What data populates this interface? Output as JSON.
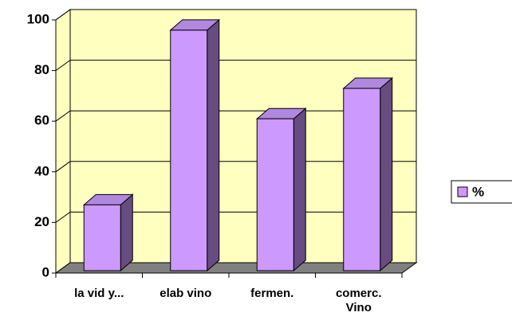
{
  "chart_data": {
    "type": "bar3d",
    "categories": [
      "la vid y...",
      "elab vino",
      "fermen.",
      "comerc. Vino"
    ],
    "series": [
      {
        "name": "%",
        "color": "#cc99ff",
        "values": [
          26,
          95,
          60,
          72
        ]
      }
    ],
    "ylim": [
      0,
      100
    ],
    "yticks": [
      0,
      20,
      40,
      60,
      80,
      100
    ],
    "grid": true,
    "legend": "right"
  }
}
